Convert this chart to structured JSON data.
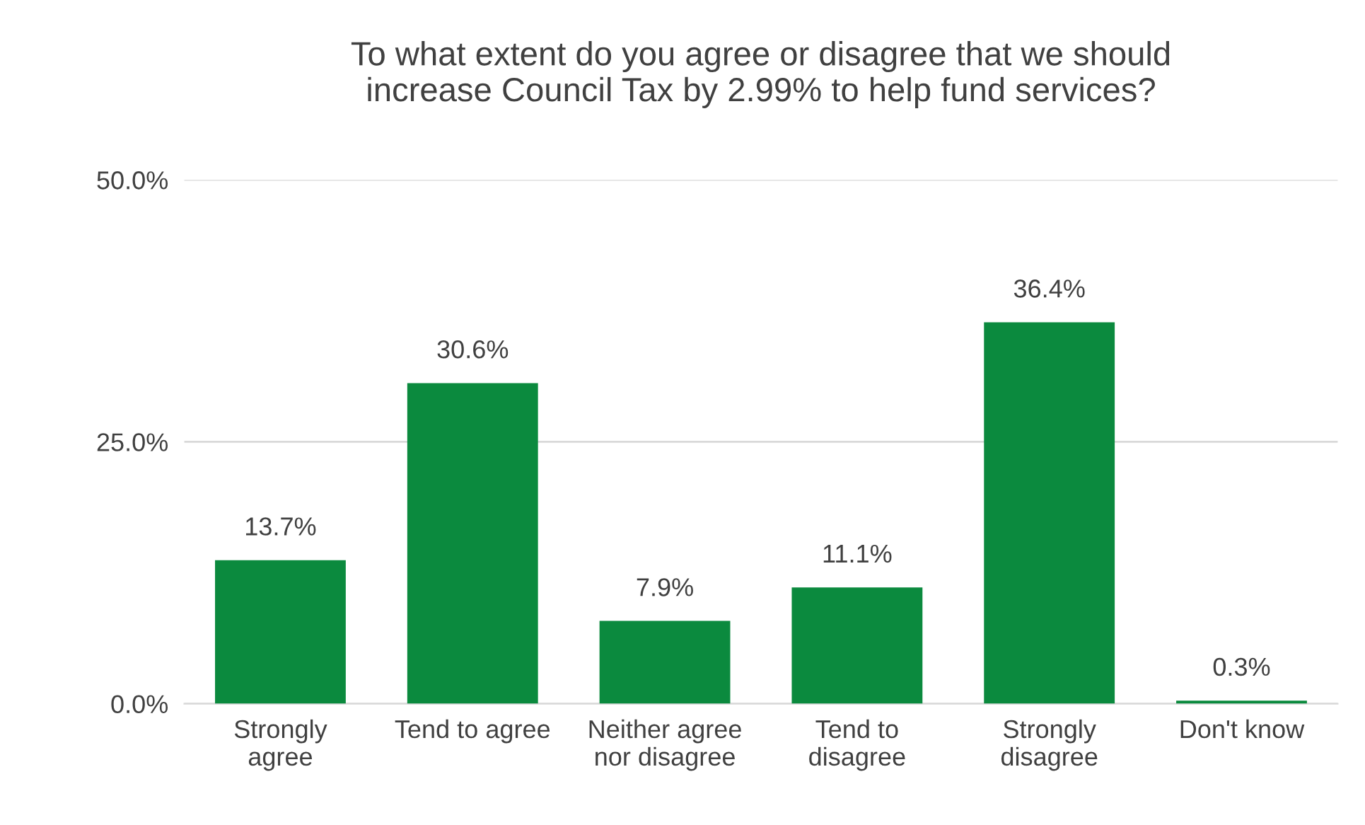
{
  "chart_data": {
    "type": "bar",
    "title": "To what extent do you agree or disagree that we should\nincrease Council Tax by 2.99% to help fund services?",
    "categories": [
      "Strongly\nagree",
      "Tend to agree",
      "Neither agree\nnor disagree",
      "Tend to\ndisagree",
      "Strongly\ndisagree",
      "Don't know"
    ],
    "values": [
      13.7,
      30.6,
      7.9,
      11.1,
      36.4,
      0.3
    ],
    "value_labels": [
      "13.7%",
      "30.6%",
      "7.9%",
      "11.1%",
      "36.4%",
      "0.3%"
    ],
    "color": "#0b8a3e",
    "ylim": [
      0,
      50
    ],
    "yticks": [
      {
        "value": 0,
        "label": "0.0%"
      },
      {
        "value": 25,
        "label": "25.0%"
      },
      {
        "value": 50,
        "label": "50.0%"
      }
    ],
    "grid": "y",
    "legend": false
  }
}
